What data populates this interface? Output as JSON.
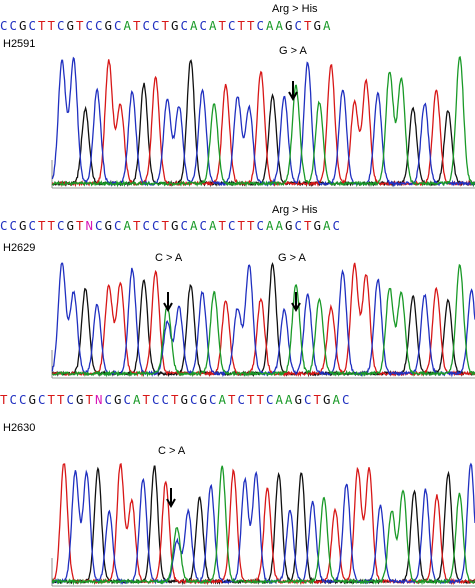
{
  "panels": [
    {
      "sample": "H2591",
      "sequence": "CCGCTTCGTCCGCATCCTGCACATCTTCAAGCTGA",
      "substitution": "Arg > His",
      "mutations": [
        {
          "label": "G > A",
          "index": 20
        }
      ]
    },
    {
      "sample": "H2629",
      "sequence": "CCGCTTCGTNCGCATCCTGCACATCTTCAAGCTGAC",
      "substitution": "Arg > His",
      "mutations": [
        {
          "label": "C > A",
          "index": 9
        },
        {
          "label": "G > A",
          "index": 20
        }
      ]
    },
    {
      "sample": "H2630",
      "sequence": "TCCGCTTCGTNCGCATCCTGCGCATCTTCAAGCTGAC",
      "substitution": "",
      "mutations": [
        {
          "label": "C > A",
          "index": 10
        }
      ]
    }
  ],
  "colors": {
    "A": "#1a9a28",
    "C": "#2030c0",
    "G": "#111111",
    "T": "#d81818",
    "N": "#d818b8"
  }
}
